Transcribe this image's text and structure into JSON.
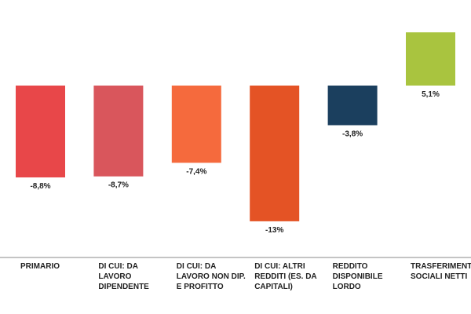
{
  "chart_data": {
    "type": "bar",
    "categories": [
      [
        "PRIMARIO"
      ],
      [
        "DI CUI: DA",
        "LAVORO",
        "DIPENDENTE"
      ],
      [
        "DI CUI: DA",
        "LAVORO NON DIP.",
        "E PROFITTO"
      ],
      [
        "DI CUI: ALTRI",
        "REDDITI (ES. DA",
        "CAPITALI)"
      ],
      [
        "REDDITO",
        "DISPONIBILE",
        "LORDO"
      ],
      [
        "TRASFERIMENTI",
        "SOCIALI NETTI"
      ]
    ],
    "values": [
      -8.8,
      -8.7,
      -7.4,
      -13,
      -3.8,
      5.1
    ],
    "value_labels": [
      "-8,8%",
      "-8,7%",
      "-7,4%",
      "-13%",
      "-3,8%",
      "5,1%"
    ],
    "colors": [
      "#e84749",
      "#d9565c",
      "#f56a3d",
      "#e45325",
      "#1b3f5e",
      "#a9c43f"
    ],
    "ylim": [
      -13,
      5.1
    ],
    "grid": false,
    "legend": "none",
    "title": "",
    "xlabel": "",
    "ylabel": ""
  }
}
